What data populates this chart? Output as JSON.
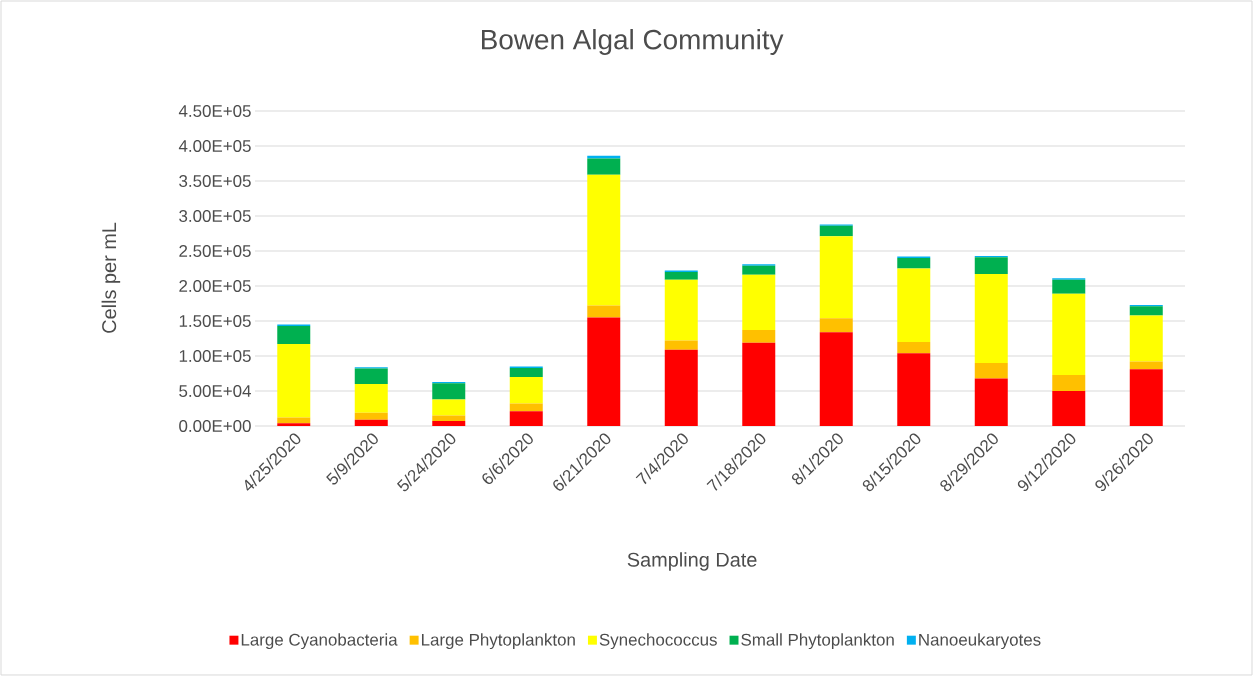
{
  "chart_data": {
    "type": "bar",
    "stacked": true,
    "title": "Bowen Algal Community",
    "xlabel": "Sampling Date",
    "ylabel": "Cells per mL",
    "categories": [
      "4/25/2020",
      "5/9/2020",
      "5/24/2020",
      "6/6/2020",
      "6/21/2020",
      "7/4/2020",
      "7/18/2020",
      "8/1/2020",
      "8/15/2020",
      "8/29/2020",
      "9/12/2020",
      "9/26/2020"
    ],
    "series": [
      {
        "name": "Large Cyanobacteria",
        "color": "#ff0000",
        "values": [
          4000,
          9000,
          7000,
          21000,
          155000,
          109000,
          119000,
          134000,
          104000,
          68000,
          50000,
          81000
        ]
      },
      {
        "name": "Large Phytoplankton",
        "color": "#ffc000",
        "values": [
          8000,
          10000,
          8000,
          11000,
          17000,
          13000,
          18000,
          20000,
          16000,
          22000,
          23000,
          11000
        ]
      },
      {
        "name": "Synechococcus",
        "color": "#ffff00",
        "values": [
          105000,
          41000,
          23000,
          38000,
          187000,
          87000,
          79000,
          117000,
          105000,
          127000,
          116000,
          66000
        ]
      },
      {
        "name": "Small Phytoplankton",
        "color": "#00b050",
        "values": [
          26000,
          22000,
          23000,
          13000,
          23000,
          11000,
          13000,
          15000,
          15000,
          24000,
          20000,
          13000
        ]
      },
      {
        "name": "Nanoeukaryotes",
        "color": "#00b0f0",
        "values": [
          2000,
          2000,
          2000,
          2000,
          4000,
          2000,
          2000,
          2000,
          2000,
          2000,
          2000,
          2000
        ]
      }
    ],
    "ylim": [
      0,
      450000
    ],
    "yticks": [
      {
        "value": 0,
        "label": "0.00E+00"
      },
      {
        "value": 50000,
        "label": "5.00E+04"
      },
      {
        "value": 100000,
        "label": "1.00E+05"
      },
      {
        "value": 150000,
        "label": "1.50E+05"
      },
      {
        "value": 200000,
        "label": "2.00E+05"
      },
      {
        "value": 250000,
        "label": "2.50E+05"
      },
      {
        "value": 300000,
        "label": "3.00E+05"
      },
      {
        "value": 350000,
        "label": "3.50E+05"
      },
      {
        "value": 400000,
        "label": "4.00E+05"
      },
      {
        "value": 450000,
        "label": "4.50E+05"
      }
    ],
    "grid": "y",
    "legend": "bottom"
  }
}
